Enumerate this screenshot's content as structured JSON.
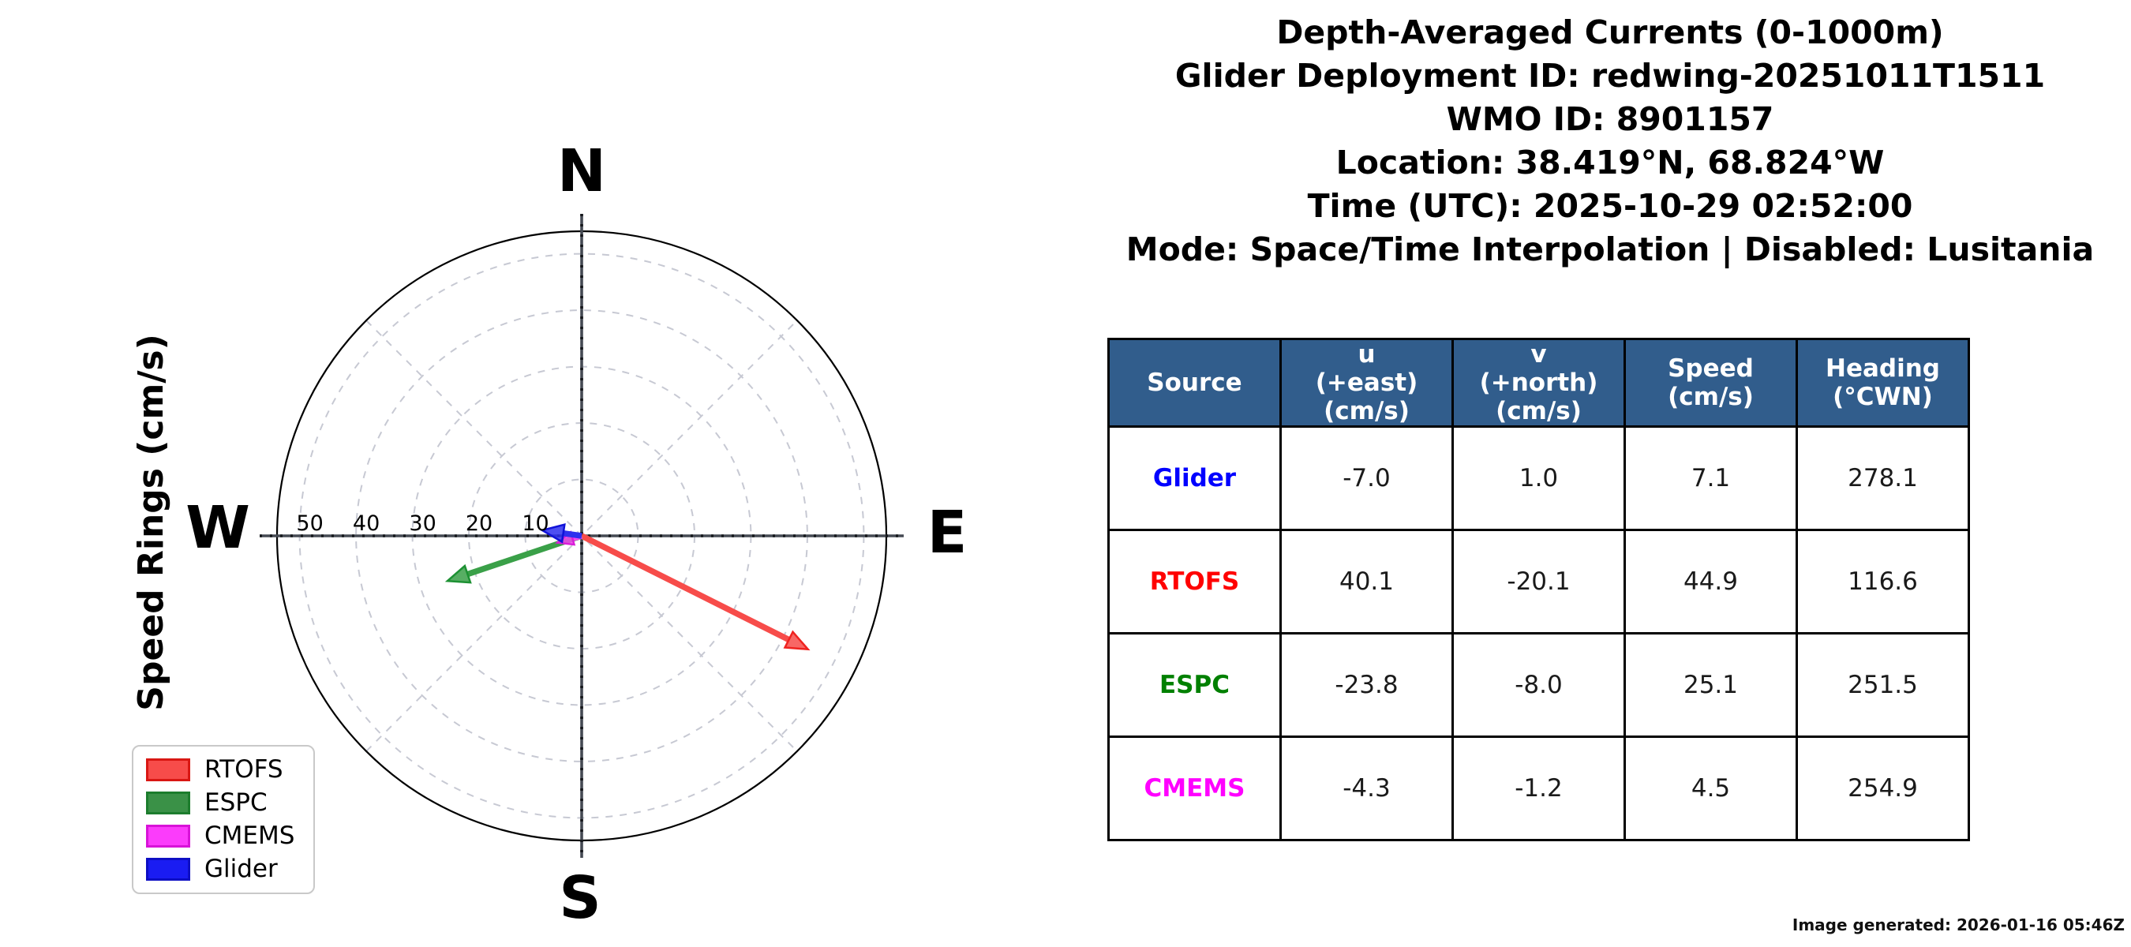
{
  "accent_color": "#315d8c",
  "title_block": {
    "lines": [
      "Depth-Averaged Currents (0-1000m)",
      "Glider Deployment ID: redwing-20251011T1511",
      "WMO ID: 8901157",
      "Location: 38.419°N, 68.824°W",
      "Time (UTC): 2025-10-29 02:52:00",
      "Mode: Space/Time Interpolation | Disabled: Lusitania"
    ]
  },
  "compass": {
    "n": "N",
    "e": "E",
    "s": "S",
    "w": "W"
  },
  "chart_data": {
    "type": "scatter",
    "variant": "polar-vector-rose",
    "title": "Depth-Averaged Currents (0-1000m)",
    "radial_axis_label": "Speed Rings (cm/s)",
    "ring_values": [
      10,
      20,
      30,
      40,
      50
    ],
    "ring_tick_labels": [
      "10",
      "20",
      "30",
      "40",
      "50"
    ],
    "rlim": [
      0,
      54
    ],
    "grid": "dashed rings with 45-degree diagonals",
    "legend_position": "lower left",
    "vectors": [
      {
        "name": "RTOFS",
        "u": 40.1,
        "v": -20.1,
        "speed": 44.9,
        "heading": 116.6,
        "color": "#f74c4a",
        "edge": "#ef2320"
      },
      {
        "name": "ESPC",
        "u": -23.8,
        "v": -8.0,
        "speed": 25.1,
        "heading": 251.5,
        "color": "#3aa048",
        "edge": "#1d9133"
      },
      {
        "name": "CMEMS",
        "u": -4.3,
        "v": -1.2,
        "speed": 4.5,
        "heading": 254.9,
        "color": "#f645f0",
        "edge": "#d81fd8"
      },
      {
        "name": "Glider",
        "u": -7.0,
        "v": 1.0,
        "speed": 7.1,
        "heading": 278.1,
        "color": "#2e30ee",
        "edge": "#1012d8"
      }
    ]
  },
  "legend": {
    "items": [
      {
        "label": "RTOFS",
        "color": "#f74c4a",
        "edge": "#d91713"
      },
      {
        "label": "ESPC",
        "color": "#3a9147",
        "edge": "#1c7d2d"
      },
      {
        "label": "CMEMS",
        "color": "#fb3cfb",
        "edge": "#d813d8"
      },
      {
        "label": "Glider",
        "color": "#1a1cf2",
        "edge": "#0d0ec4"
      }
    ]
  },
  "table": {
    "headers": [
      "Source",
      "u\n(+east)\n(cm/s)",
      "v\n(+north)\n(cm/s)",
      "Speed\n(cm/s)",
      "Heading\n(°CWN)"
    ],
    "rows": [
      {
        "source": "Glider",
        "color": "#0000ff",
        "u": "-7.0",
        "v": "1.0",
        "speed": "7.1",
        "heading": "278.1"
      },
      {
        "source": "RTOFS",
        "color": "#ff0000",
        "u": "40.1",
        "v": "-20.1",
        "speed": "44.9",
        "heading": "116.6"
      },
      {
        "source": "ESPC",
        "color": "#008000",
        "u": "-23.8",
        "v": "-8.0",
        "speed": "25.1",
        "heading": "251.5"
      },
      {
        "source": "CMEMS",
        "color": "#ff00ff",
        "u": "-4.3",
        "v": "-1.2",
        "speed": "4.5",
        "heading": "254.9"
      }
    ]
  },
  "footer": {
    "generated": "Image generated: 2026-01-16 05:46Z"
  }
}
